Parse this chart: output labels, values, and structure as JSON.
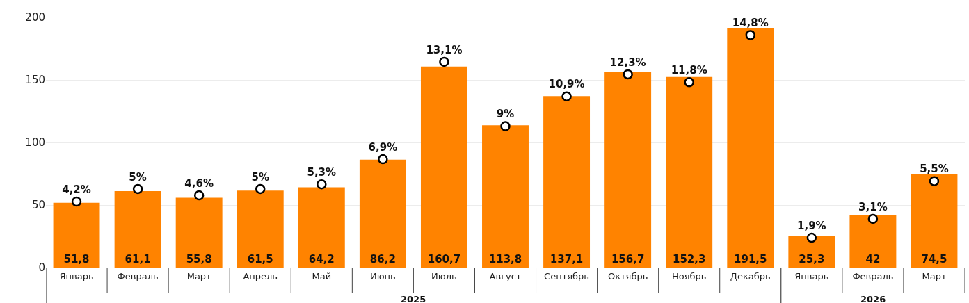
{
  "chart_data": {
    "type": "bar",
    "categories": [
      "Январь",
      "Февраль",
      "Март",
      "Апрель",
      "Май",
      "Июнь",
      "Июль",
      "Август",
      "Сентябрь",
      "Октябрь",
      "Ноябрь",
      "Декабрь",
      "Январь",
      "Февраль",
      "Март"
    ],
    "series": [
      {
        "color": "#ff8300",
        "values": [
          51.8,
          61.1,
          55.8,
          61.5,
          64.2,
          86.2,
          160.7,
          113.8,
          137.1,
          156.7,
          152.3,
          191.5,
          25.3,
          42,
          74.5
        ],
        "value_labels": [
          "51,8",
          "61,1",
          "55,8",
          "61,5",
          "64,2",
          "86,2",
          "160,7",
          "113,8",
          "137,1",
          "156,7",
          "152,3",
          "191,5",
          "25,3",
          "42",
          "74,5"
        ]
      },
      {
        "type": "scatter",
        "axis": "y2",
        "color": "#ffffff",
        "values": [
          4.2,
          5,
          4.6,
          5,
          5.3,
          6.9,
          13.1,
          9,
          10.9,
          12.3,
          11.8,
          14.8,
          1.9,
          3.1,
          5.5
        ],
        "value_labels": [
          "4,2%",
          "5%",
          "4,6%",
          "5%",
          "5,3%",
          "6,9%",
          "13,1%",
          "9%",
          "10,9%",
          "12,3%",
          "11,8%",
          "14,8%",
          "1,9%",
          "3,1%",
          "5,5%"
        ]
      }
    ],
    "ylim": [
      0,
      200
    ],
    "yticks": [
      0,
      50,
      100,
      150,
      200
    ],
    "grid": "y",
    "marker": "circle",
    "annotations": [
      "2025",
      "2026"
    ]
  }
}
